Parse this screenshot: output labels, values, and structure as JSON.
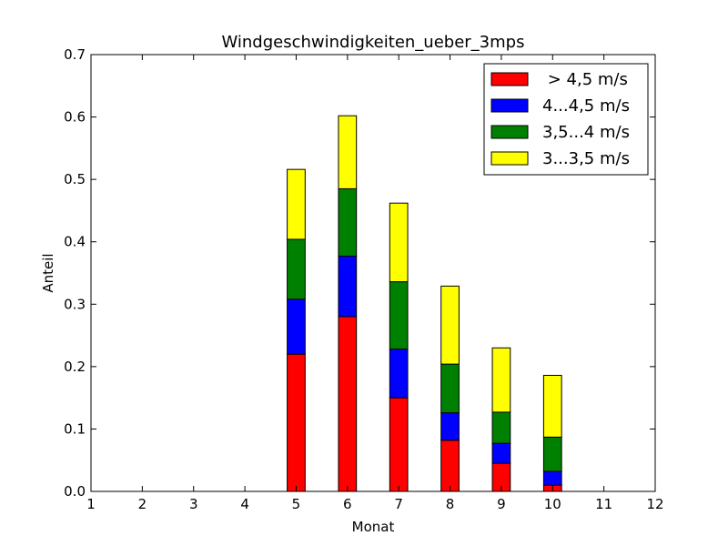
{
  "chart_data": {
    "type": "bar",
    "stacked": true,
    "title": "Windgeschwindigkeiten_ueber_3mps",
    "xlabel": "Monat",
    "ylabel": "Anteil",
    "xlim": [
      1,
      12
    ],
    "ylim": [
      0,
      0.7
    ],
    "x_ticks": [
      "1",
      "2",
      "3",
      "4",
      "5",
      "6",
      "7",
      "8",
      "9",
      "10",
      "11",
      "12"
    ],
    "y_ticks": [
      "0.0",
      "0.1",
      "0.2",
      "0.3",
      "0.4",
      "0.5",
      "0.6",
      "0.7"
    ],
    "x": [
      1,
      2,
      3,
      4,
      5,
      6,
      7,
      8,
      9,
      10,
      11,
      12
    ],
    "grid": false,
    "legend_position": "top-right",
    "series": [
      {
        "name": " > 4,5 m/s",
        "color": "#ff0000",
        "values": [
          0,
          0,
          0,
          0,
          0.22,
          0.28,
          0.15,
          0.082,
          0.045,
          0.01,
          0,
          0
        ]
      },
      {
        "name": "4...4,5 m/s",
        "color": "#0000ff",
        "values": [
          0,
          0,
          0,
          0,
          0.088,
          0.097,
          0.078,
          0.044,
          0.032,
          0.022,
          0,
          0
        ]
      },
      {
        "name": "3,5...4 m/s",
        "color": "#008000",
        "values": [
          0,
          0,
          0,
          0,
          0.096,
          0.108,
          0.108,
          0.078,
          0.05,
          0.055,
          0,
          0
        ]
      },
      {
        "name": "3...3,5 m/s",
        "color": "#ffff00",
        "values": [
          0,
          0,
          0,
          0,
          0.112,
          0.117,
          0.126,
          0.125,
          0.103,
          0.099,
          0,
          0
        ]
      }
    ]
  }
}
